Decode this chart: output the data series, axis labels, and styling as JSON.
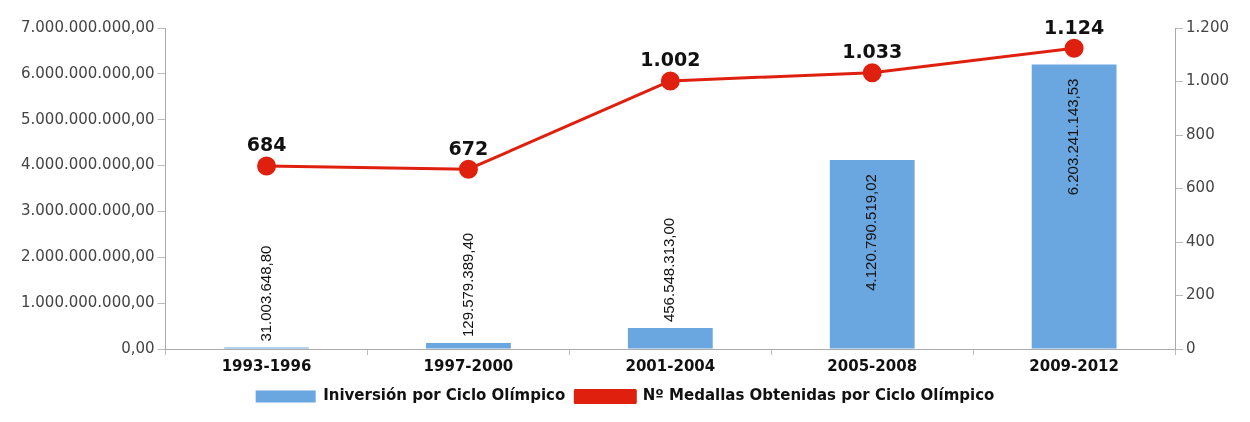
{
  "chart_data": {
    "type": "bar",
    "categories": [
      "1993-1996",
      "1997-2000",
      "2001-2004",
      "2005-2008",
      "2009-2012"
    ],
    "series": [
      {
        "name": "Iniversión por Ciclo Olímpico",
        "color": "#6aa6e0",
        "values": [
          31003648.8,
          129579389.4,
          456548313.0,
          4120790519.02,
          6203241143.53
        ],
        "value_labels": [
          "31.003.648,80",
          "129.579.389,40",
          "456.548.313,00",
          "4.120.790.519,02",
          "6.203.241.143,53"
        ]
      },
      {
        "name": "Nº Medallas Obtenidas por Ciclo Olímpico",
        "type": "line",
        "axis": "y2",
        "color": "#e0200f",
        "values": [
          684,
          672,
          1002,
          1033,
          1124
        ],
        "value_labels": [
          "684",
          "672",
          "1.002",
          "1.033",
          "1.124"
        ]
      }
    ],
    "ylim": [
      0,
      7000000000
    ],
    "yticks": [
      {
        "value": 0,
        "label": "0,00"
      },
      {
        "value": 1000000000,
        "label": "1.000.000.000,00"
      },
      {
        "value": 2000000000,
        "label": "2.000.000.000,00"
      },
      {
        "value": 3000000000,
        "label": "3.000.000.000,00"
      },
      {
        "value": 4000000000,
        "label": "4.000.000.000,00"
      },
      {
        "value": 5000000000,
        "label": "5.000.000.000,00"
      },
      {
        "value": 6000000000,
        "label": "6.000.000.000,00"
      },
      {
        "value": 7000000000,
        "label": "7.000.000.000,00"
      }
    ],
    "y2lim": [
      0,
      1200
    ],
    "y2ticks": [
      0,
      200,
      400,
      600,
      800,
      {
        "value": 1000,
        "label": "1.000"
      },
      {
        "value": 1200,
        "label": "1.200"
      }
    ],
    "grid": false,
    "legend": "bottom",
    "marker": "circle",
    "line_style": "solid"
  }
}
